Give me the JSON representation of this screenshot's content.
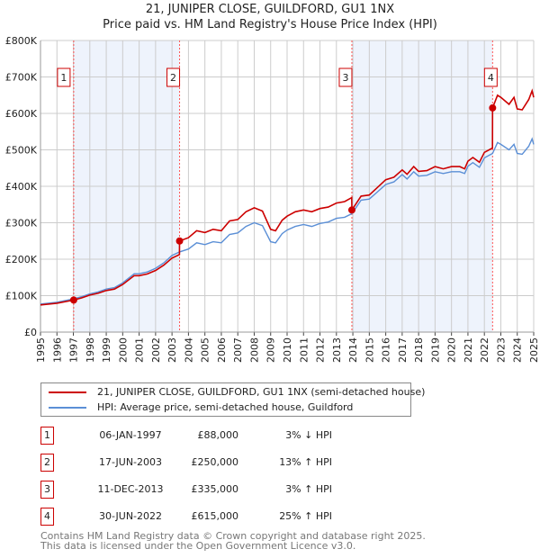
{
  "chart_data": {
    "type": "line",
    "title": "21, JUNIPER CLOSE, GUILDFORD, GU1 1NX",
    "subtitle": "Price paid vs. HM Land Registry's House Price Index (HPI)",
    "xlim": [
      1995,
      2025
    ],
    "ylim": [
      0,
      800000
    ],
    "y_ticks": [
      {
        "v": 0,
        "label": "£0"
      },
      {
        "v": 100000,
        "label": "£100K"
      },
      {
        "v": 200000,
        "label": "£200K"
      },
      {
        "v": 300000,
        "label": "£300K"
      },
      {
        "v": 400000,
        "label": "£400K"
      },
      {
        "v": 500000,
        "label": "£500K"
      },
      {
        "v": 600000,
        "label": "£600K"
      },
      {
        "v": 700000,
        "label": "£700K"
      },
      {
        "v": 800000,
        "label": "£800K"
      }
    ],
    "x_ticks": [
      "1995",
      "1996",
      "1997",
      "1998",
      "1999",
      "2000",
      "2001",
      "2002",
      "2003",
      "2004",
      "2005",
      "2006",
      "2007",
      "2008",
      "2009",
      "2010",
      "2011",
      "2012",
      "2013",
      "2014",
      "2015",
      "2016",
      "2017",
      "2018",
      "2019",
      "2020",
      "2021",
      "2022",
      "2023",
      "2024",
      "2025"
    ],
    "grid": true,
    "legend_placement": "below",
    "shaded_ranges": [
      [
        1997.02,
        2003.46
      ],
      [
        2013.94,
        2022.5
      ]
    ],
    "series": [
      {
        "name": "21, JUNIPER CLOSE, GUILDFORD, GU1 1NX (semi-detached house)",
        "color": "#cc0000",
        "points": [
          [
            1995,
            74500
          ],
          [
            1996,
            79300
          ],
          [
            1997.02,
            88000
          ],
          [
            1997.5,
            93800
          ],
          [
            1998,
            101500
          ],
          [
            1998.5,
            106400
          ],
          [
            1999,
            114100
          ],
          [
            1999.5,
            118000
          ],
          [
            2000,
            130500
          ],
          [
            2000.7,
            154700
          ],
          [
            2001,
            154700
          ],
          [
            2001.5,
            159600
          ],
          [
            2002,
            169200
          ],
          [
            2002.5,
            183700
          ],
          [
            2003,
            203000
          ],
          [
            2003.45,
            212700
          ],
          [
            2003.46,
            250000
          ],
          [
            2004,
            259000
          ],
          [
            2004.5,
            278000
          ],
          [
            2005,
            273000
          ],
          [
            2005.5,
            282000
          ],
          [
            2006,
            278000
          ],
          [
            2006.5,
            305000
          ],
          [
            2007,
            309000
          ],
          [
            2007.5,
            330000
          ],
          [
            2008,
            341000
          ],
          [
            2008.5,
            332000
          ],
          [
            2009,
            282000
          ],
          [
            2009.3,
            278000
          ],
          [
            2009.7,
            307000
          ],
          [
            2010,
            318000
          ],
          [
            2010.5,
            330000
          ],
          [
            2011,
            335000
          ],
          [
            2011.5,
            330000
          ],
          [
            2012,
            339000
          ],
          [
            2012.5,
            343000
          ],
          [
            2013,
            354000
          ],
          [
            2013.5,
            358000
          ],
          [
            2013.93,
            369000
          ],
          [
            2013.94,
            335000
          ],
          [
            2014.5,
            373000
          ],
          [
            2015,
            376000
          ],
          [
            2015.5,
            397000
          ],
          [
            2016,
            418000
          ],
          [
            2016.5,
            425000
          ],
          [
            2017,
            445000
          ],
          [
            2017.3,
            433000
          ],
          [
            2017.7,
            454000
          ],
          [
            2018,
            441000
          ],
          [
            2018.5,
            443000
          ],
          [
            2019,
            454000
          ],
          [
            2019.5,
            448000
          ],
          [
            2020,
            454000
          ],
          [
            2020.5,
            454000
          ],
          [
            2020.8,
            448000
          ],
          [
            2021,
            469000
          ],
          [
            2021.3,
            479000
          ],
          [
            2021.7,
            466000
          ],
          [
            2022,
            493000
          ],
          [
            2022.49,
            505000
          ],
          [
            2022.5,
            615000
          ],
          [
            2022.8,
            650000
          ],
          [
            2023,
            644000
          ],
          [
            2023.5,
            625000
          ],
          [
            2023.8,
            644000
          ],
          [
            2024,
            612000
          ],
          [
            2024.3,
            610000
          ],
          [
            2024.7,
            638000
          ],
          [
            2024.9,
            662000
          ],
          [
            2025,
            644000
          ]
        ]
      },
      {
        "name": "HPI: Average price, semi-detached house, Guildford",
        "color": "#5b8fd6",
        "points": [
          [
            1995,
            77000
          ],
          [
            1996,
            82000
          ],
          [
            1997.02,
            91000
          ],
          [
            1997.5,
            97000
          ],
          [
            1998,
            105000
          ],
          [
            1998.5,
            110000
          ],
          [
            1999,
            118000
          ],
          [
            1999.5,
            122000
          ],
          [
            2000,
            135000
          ],
          [
            2000.7,
            160000
          ],
          [
            2001,
            160000
          ],
          [
            2001.5,
            165000
          ],
          [
            2002,
            175000
          ],
          [
            2002.5,
            190000
          ],
          [
            2003,
            210000
          ],
          [
            2003.46,
            220000
          ],
          [
            2004,
            228000
          ],
          [
            2004.5,
            245000
          ],
          [
            2005,
            240000
          ],
          [
            2005.5,
            248000
          ],
          [
            2006,
            245000
          ],
          [
            2006.5,
            268000
          ],
          [
            2007,
            272000
          ],
          [
            2007.5,
            290000
          ],
          [
            2008,
            300000
          ],
          [
            2008.5,
            292000
          ],
          [
            2009,
            248000
          ],
          [
            2009.3,
            245000
          ],
          [
            2009.7,
            270000
          ],
          [
            2010,
            280000
          ],
          [
            2010.5,
            290000
          ],
          [
            2011,
            295000
          ],
          [
            2011.5,
            290000
          ],
          [
            2012,
            298000
          ],
          [
            2012.5,
            302000
          ],
          [
            2013,
            312000
          ],
          [
            2013.5,
            315000
          ],
          [
            2013.94,
            325000
          ],
          [
            2014.5,
            362000
          ],
          [
            2015,
            365000
          ],
          [
            2015.5,
            385000
          ],
          [
            2016,
            405000
          ],
          [
            2016.5,
            412000
          ],
          [
            2017,
            432000
          ],
          [
            2017.3,
            420000
          ],
          [
            2017.7,
            440000
          ],
          [
            2018,
            428000
          ],
          [
            2018.5,
            430000
          ],
          [
            2019,
            440000
          ],
          [
            2019.5,
            435000
          ],
          [
            2020,
            440000
          ],
          [
            2020.5,
            440000
          ],
          [
            2020.8,
            435000
          ],
          [
            2021,
            455000
          ],
          [
            2021.3,
            465000
          ],
          [
            2021.7,
            452000
          ],
          [
            2022,
            478000
          ],
          [
            2022.5,
            490000
          ],
          [
            2022.8,
            520000
          ],
          [
            2023,
            515000
          ],
          [
            2023.5,
            500000
          ],
          [
            2023.8,
            515000
          ],
          [
            2024,
            490000
          ],
          [
            2024.3,
            488000
          ],
          [
            2024.7,
            510000
          ],
          [
            2024.9,
            530000
          ],
          [
            2025,
            515000
          ]
        ]
      }
    ],
    "sales": [
      {
        "label": "1",
        "x": 1997.02,
        "price": 88000,
        "date": "06-JAN-1997",
        "price_text": "£88,000",
        "hpi_text": "3% ↓ HPI"
      },
      {
        "label": "2",
        "x": 2003.46,
        "price": 250000,
        "date": "17-JUN-2003",
        "price_text": "£250,000",
        "hpi_text": "13% ↑ HPI"
      },
      {
        "label": "3",
        "x": 2013.94,
        "price": 335000,
        "date": "11-DEC-2013",
        "price_text": "£335,000",
        "hpi_text": "3% ↑ HPI"
      },
      {
        "label": "4",
        "x": 2022.5,
        "price": 615000,
        "date": "30-JUN-2022",
        "price_text": "£615,000",
        "hpi_text": "25% ↑ HPI"
      }
    ]
  },
  "legend": {
    "property": "21, JUNIPER CLOSE, GUILDFORD, GU1 1NX (semi-detached house)",
    "hpi": "HPI: Average price, semi-detached house, Guildford"
  },
  "footer": {
    "line1": "Contains HM Land Registry data © Crown copyright and database right 2025.",
    "line2": "This data is licensed under the Open Government Licence v3.0."
  }
}
